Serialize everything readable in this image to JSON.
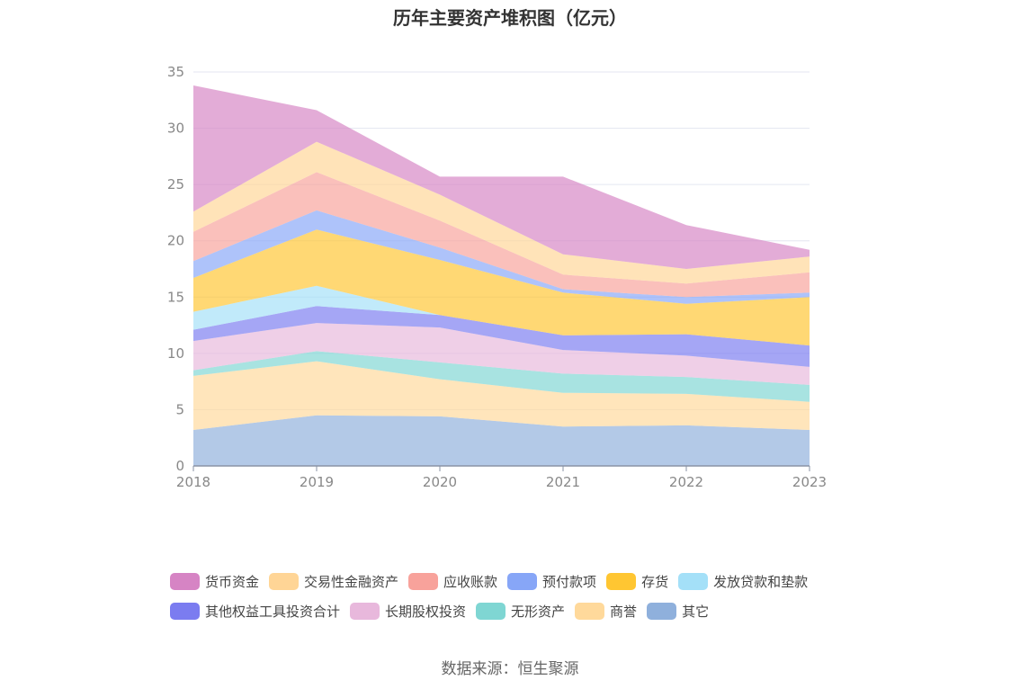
{
  "chart_data": {
    "type": "area",
    "stacked": true,
    "title": "历年主要资产堆积图（亿元）",
    "x": [
      "2018",
      "2019",
      "2020",
      "2021",
      "2022",
      "2023"
    ],
    "ylim": [
      0,
      35
    ],
    "yticks": [
      0,
      5,
      10,
      15,
      20,
      25,
      30,
      35
    ],
    "grid": true,
    "legend_position": "bottom",
    "series": [
      {
        "name": "其它",
        "color": "#8fb0dc",
        "values": [
          3.2,
          4.5,
          4.4,
          3.5,
          3.6,
          3.2
        ]
      },
      {
        "name": "商誉",
        "color": "#ffd99b",
        "values": [
          4.8,
          4.8,
          3.3,
          3.0,
          2.8,
          2.5
        ]
      },
      {
        "name": "无形资产",
        "color": "#7fd6d3",
        "values": [
          0.5,
          0.9,
          1.5,
          1.7,
          1.5,
          1.5
        ]
      },
      {
        "name": "长期股权投资",
        "color": "#e8b8dc",
        "values": [
          2.6,
          2.5,
          3.1,
          2.1,
          1.9,
          1.6
        ]
      },
      {
        "name": "其他权益工具投资合计",
        "color": "#7b7cf0",
        "values": [
          1.0,
          1.5,
          1.1,
          1.3,
          1.9,
          1.9
        ]
      },
      {
        "name": "发放贷款和垫款",
        "color": "#a4e0f8",
        "values": [
          1.6,
          1.8,
          0.0,
          0.0,
          0.0,
          0.0
        ]
      },
      {
        "name": "存货",
        "color": "#ffc632",
        "values": [
          3.0,
          5.0,
          4.9,
          3.8,
          2.7,
          4.3
        ]
      },
      {
        "name": "预付款项",
        "color": "#87a6f7",
        "values": [
          1.5,
          1.7,
          1.1,
          0.3,
          0.6,
          0.4
        ]
      },
      {
        "name": "应收账款",
        "color": "#f8a29b",
        "values": [
          2.6,
          3.4,
          2.4,
          1.3,
          1.2,
          1.8
        ]
      },
      {
        "name": "交易性金融资产",
        "color": "#ffd596",
        "values": [
          1.8,
          2.7,
          2.3,
          1.8,
          1.3,
          1.4
        ]
      },
      {
        "name": "货币资金",
        "color": "#d684c4",
        "values": [
          11.2,
          2.8,
          1.6,
          6.9,
          3.9,
          0.6
        ]
      }
    ]
  },
  "legend": {
    "row1": [
      {
        "label": "货币资金",
        "color": "#d684c4"
      },
      {
        "label": "交易性金融资产",
        "color": "#ffd596"
      },
      {
        "label": "应收账款",
        "color": "#f8a29b"
      },
      {
        "label": "预付款项",
        "color": "#87a6f7"
      },
      {
        "label": "存货",
        "color": "#ffc632"
      },
      {
        "label": "发放贷款和垫款",
        "color": "#a4e0f8"
      }
    ],
    "row2": [
      {
        "label": "其他权益工具投资合计",
        "color": "#7b7cf0"
      },
      {
        "label": "长期股权投资",
        "color": "#e8b8dc"
      },
      {
        "label": "无形资产",
        "color": "#7fd6d3"
      },
      {
        "label": "商誉",
        "color": "#ffd99b"
      },
      {
        "label": "其它",
        "color": "#8fb0dc"
      }
    ]
  },
  "source": "数据来源：恒生聚源"
}
